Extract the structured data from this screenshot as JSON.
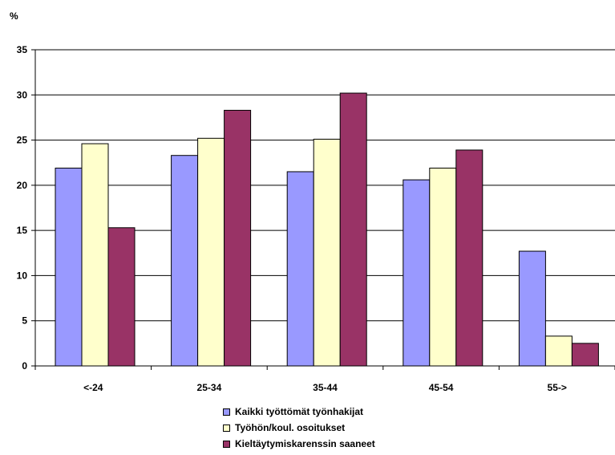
{
  "chart_data": {
    "type": "bar",
    "ylabel": "%",
    "ylim": [
      0,
      35
    ],
    "yticks": [
      "0",
      "5",
      "10",
      "15",
      "20",
      "25",
      "30",
      "35"
    ],
    "grid": true,
    "legend_position": "bottom",
    "categories": [
      "<-24",
      "25-34",
      "35-44",
      "45-54",
      "55->"
    ],
    "series": [
      {
        "name": "Kaikki työttömät työnhakijat",
        "color": "#9999ff",
        "values": [
          21.9,
          23.3,
          21.5,
          20.6,
          12.7
        ]
      },
      {
        "name": "Työhön/koul. osoitukset",
        "color": "#ffffcc",
        "values": [
          24.6,
          25.2,
          25.1,
          21.9,
          3.3
        ]
      },
      {
        "name": "Kieltäytymiskarenssin saaneet",
        "color": "#993366",
        "values": [
          15.3,
          28.3,
          30.2,
          23.9,
          2.5
        ]
      }
    ]
  }
}
